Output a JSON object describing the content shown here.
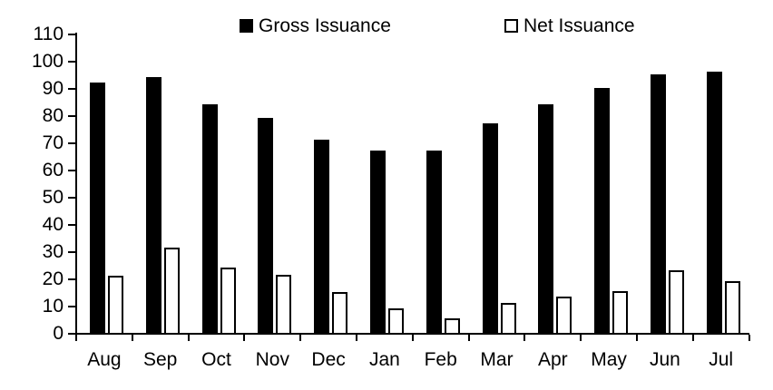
{
  "chart_data": {
    "type": "bar",
    "title": "",
    "xlabel": "",
    "ylabel": "",
    "categories": [
      "Aug",
      "Sep",
      "Oct",
      "Nov",
      "Dec",
      "Jan",
      "Feb",
      "Mar",
      "Apr",
      "May",
      "Jun",
      "Jul"
    ],
    "series": [
      {
        "name": "Gross Issuance",
        "values": [
          92,
          94,
          84,
          79,
          71,
          67,
          67,
          77,
          84,
          90,
          95,
          96
        ],
        "fill": "#000000",
        "stroke": "#000000"
      },
      {
        "name": "Net Issuance",
        "values": [
          21,
          31.5,
          24,
          21.5,
          15,
          9,
          5.5,
          11,
          13.5,
          15.5,
          23,
          19
        ],
        "fill": "#FFFFFF",
        "stroke": "#000000"
      }
    ],
    "ylim": [
      0,
      110
    ],
    "ytick_step": 10,
    "ytick_labels": [
      "0",
      "10",
      "20",
      "30",
      "40",
      "50",
      "60",
      "70",
      "80",
      "90",
      "100",
      "110"
    ],
    "grid": false,
    "legend_position": "top"
  },
  "colors": {
    "background": "#FFFFFF",
    "axis": "#000000",
    "text": "#000000"
  }
}
